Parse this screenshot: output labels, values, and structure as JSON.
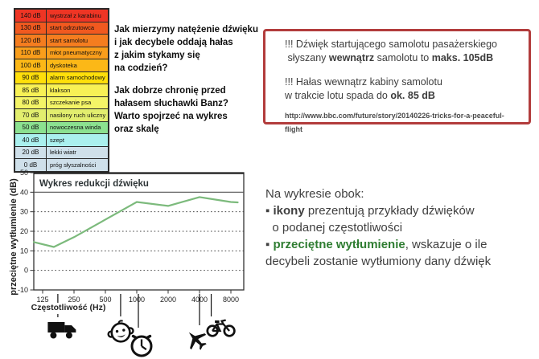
{
  "scale_table": {
    "rows": [
      {
        "db": "140 dB",
        "label": "wystrzał z karabinu",
        "color": "#ee3524"
      },
      {
        "db": "130 dB",
        "label": "start odrzutowca",
        "color": "#f1591f"
      },
      {
        "db": "120 dB",
        "label": "start samolotu",
        "color": "#f57d1f"
      },
      {
        "db": "110 dB",
        "label": "młot pneumatyczny",
        "color": "#f99e1b"
      },
      {
        "db": "100 dB",
        "label": "dyskoteka",
        "color": "#fcb817"
      },
      {
        "db": "90 dB",
        "label": "alarm samochodowy",
        "color": "#ffdf0a"
      },
      {
        "db": "85 dB",
        "label": "klakson",
        "color": "#f8f155"
      },
      {
        "db": "80 dB",
        "label": "szczekanie psa",
        "color": "#f4f467"
      },
      {
        "db": "70 dB",
        "label": "nasilony ruch uliczny",
        "color": "#e2ee6e"
      },
      {
        "db": "50 dB",
        "label": "nowoczesna winda",
        "color": "#8be190"
      },
      {
        "db": "40 dB",
        "label": "szept",
        "color": "#aaf0ee"
      },
      {
        "db": "20 dB",
        "label": "lekki wiatr",
        "color": "#cfe0ea"
      },
      {
        "db": "0 dB",
        "label": "próg słyszalności",
        "color": "#cfe0ea"
      }
    ]
  },
  "intro": {
    "lines": [
      "Jak mierzymy natężenie dźwięku",
      "i jak decybele oddają hałas",
      "z jakim stykamy się",
      "na codzień?",
      "",
      "Jak dobrze chronię przed",
      "hałasem słuchawki Banz?",
      "Warto spojrzeć na wykres",
      "oraz skalę"
    ]
  },
  "info_box": {
    "border_color": "#b23c3c",
    "lines": [
      [
        {
          "t": "!!! Dźwięk startującego samolotu pasażerskiego"
        }
      ],
      [
        {
          "t": " słyszany "
        },
        {
          "t": "wewnątrz",
          "b": 1
        },
        {
          "t": " samolotu to "
        },
        {
          "t": "maks. 105dB",
          "b": 1
        }
      ],
      [],
      [
        {
          "t": "!!! Hałas wewnątrz kabiny samolotu"
        }
      ],
      [
        {
          "t": "w trakcie lotu spada do "
        },
        {
          "t": "ok. 85 dB",
          "b": 1
        }
      ]
    ],
    "url": "http://www.bbc.com/future/story/20140226-tricks-for-a-peaceful-flight"
  },
  "side_note": {
    "green": "#2f7d32",
    "lines": [
      [
        {
          "t": "Na wykresie obok:"
        }
      ],
      [
        {
          "t": "▪ ",
          "b": 1
        },
        {
          "t": "ikony",
          "b": 1
        },
        {
          "t": " prezentują przykłady dźwięków"
        }
      ],
      [
        {
          "t": "  o podanej częstotliwości"
        }
      ],
      [
        {
          "t": "▪ ",
          "b": 1
        },
        {
          "t": "przeciętne wytłumienie",
          "b": 1,
          "c": "#2f7d32"
        },
        {
          "t": ", wskazuje o ile"
        }
      ],
      [
        {
          "t": "decybeli zostanie wytłumiony dany dźwięk"
        }
      ]
    ]
  },
  "chart_data": {
    "type": "line",
    "title": "Wykres redukcji dźwięku",
    "xlabel": "Częstotliwość (Hz)",
    "ylabel": "przeciętne wytłumienie (dB)",
    "x_scale": "log",
    "x_ticks": [
      125,
      250,
      500,
      1000,
      2000,
      4000,
      8000
    ],
    "y_ticks": [
      50,
      40,
      30,
      20,
      10,
      0,
      -10
    ],
    "ylim": [
      -10,
      50
    ],
    "xlim": [
      103,
      10600
    ],
    "solid_gridline": 40,
    "dotted_gridlines": [
      30,
      20,
      10,
      0
    ],
    "line_color": "#7cba7c",
    "grid": true,
    "legend": "none",
    "series": [
      {
        "name": "przeciętne wytłumienie",
        "points": [
          [
            103,
            14.5
          ],
          [
            160,
            12
          ],
          [
            250,
            17
          ],
          [
            1000,
            35
          ],
          [
            2000,
            33
          ],
          [
            4000,
            37.5
          ],
          [
            8000,
            35
          ],
          [
            9300,
            34.8
          ]
        ]
      }
    ]
  },
  "icons": [
    {
      "name": "truck-icon",
      "freq_hz": 160
    },
    {
      "name": "baby-icon",
      "freq_hz": 700
    },
    {
      "name": "clock-icon",
      "freq_hz": 1000
    },
    {
      "name": "airplane-icon",
      "freq_hz": 4000
    },
    {
      "name": "bicycle-icon",
      "freq_hz": 5000
    }
  ]
}
